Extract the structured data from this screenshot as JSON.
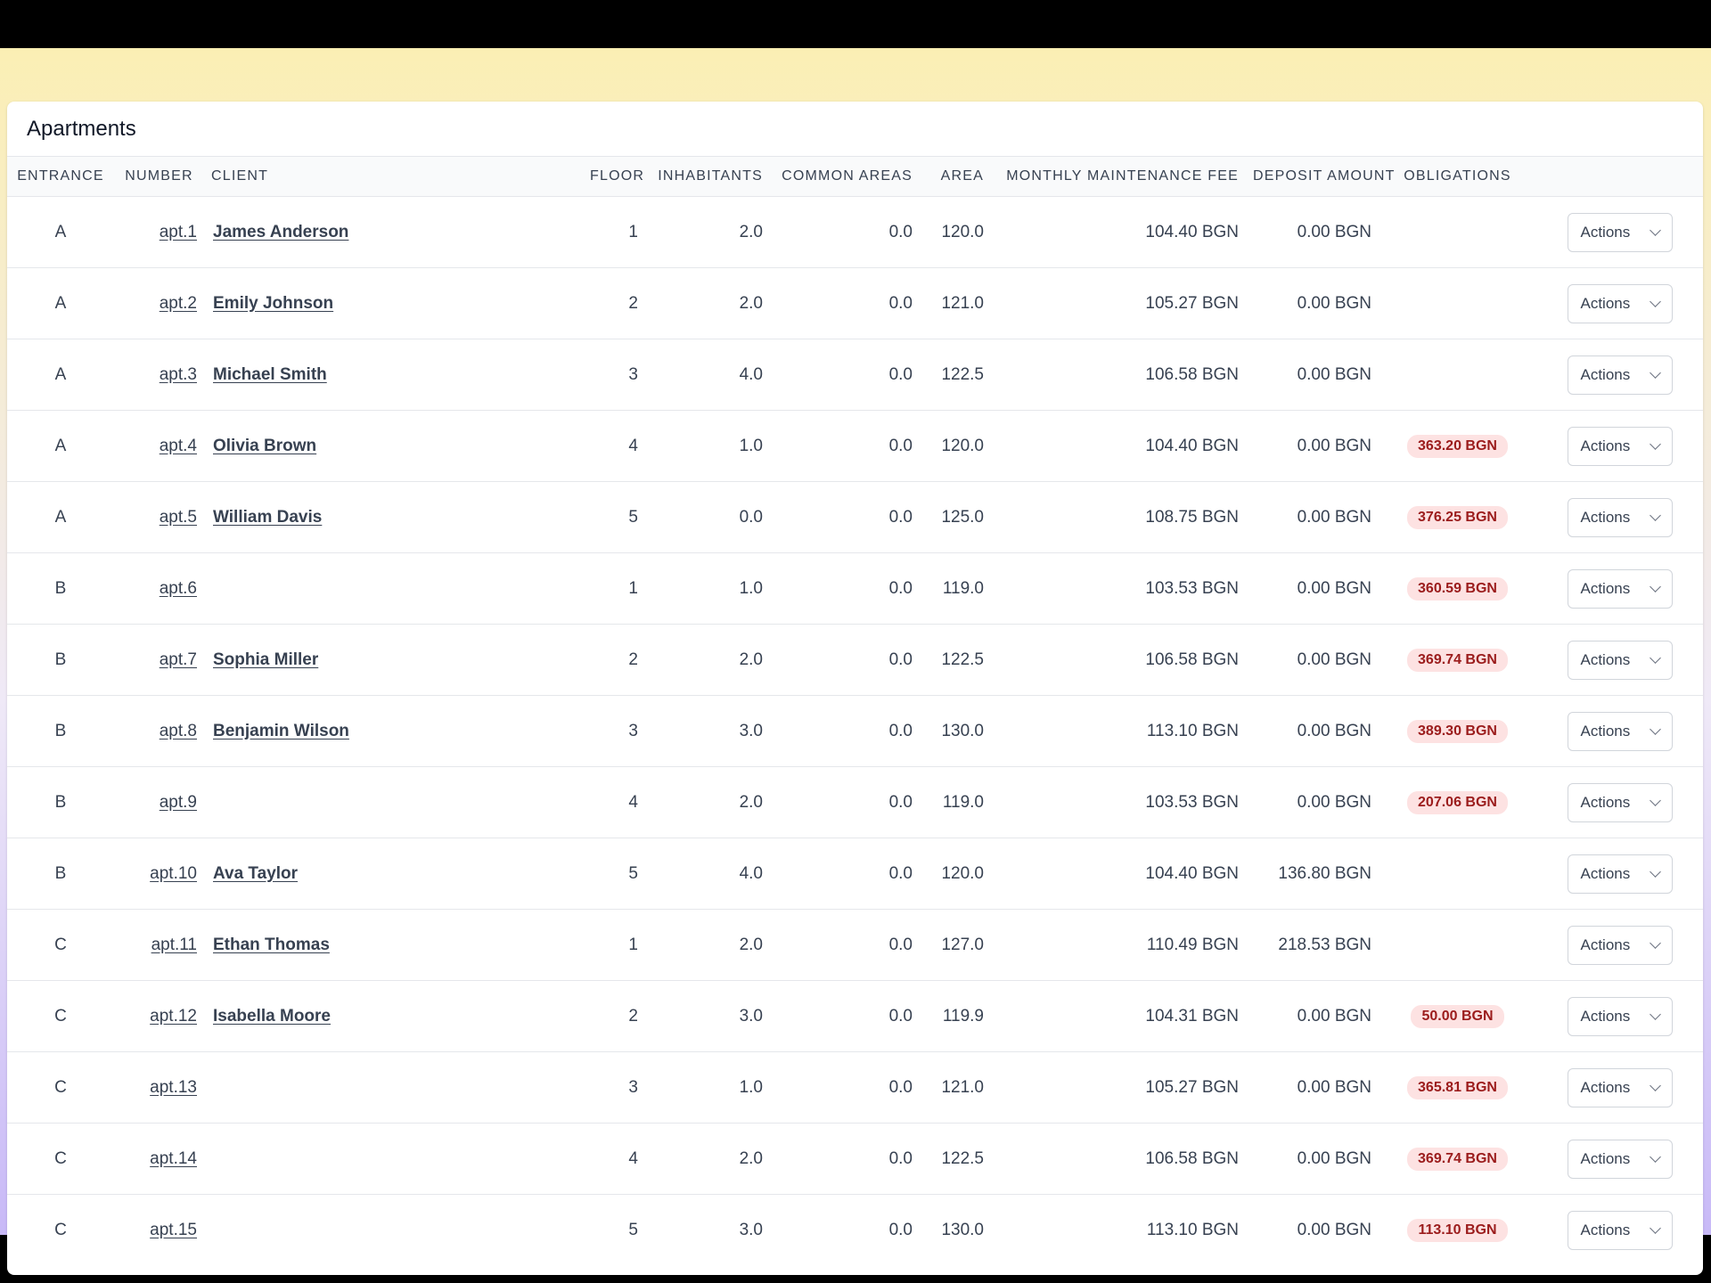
{
  "card": {
    "title": "Apartments"
  },
  "columns": {
    "entrance": "Entrance",
    "number": "Number",
    "client": "Client",
    "floor": "Floor",
    "inhabitants": "Inhabitants",
    "common_areas": "Common Areas",
    "area": "Area",
    "monthly_fee": "Monthly Maintenance Fee",
    "deposit": "Deposit Amount",
    "obligations": "Obligations"
  },
  "action_label": "Actions",
  "rows": [
    {
      "entrance": "A",
      "number": "apt.1",
      "client": "James Anderson",
      "floor": "1",
      "inhabitants": "2.0",
      "common": "0.0",
      "area": "120.0",
      "fee": "104.40 BGN",
      "deposit": "0.00 BGN",
      "obligation": ""
    },
    {
      "entrance": "A",
      "number": "apt.2",
      "client": "Emily Johnson",
      "floor": "2",
      "inhabitants": "2.0",
      "common": "0.0",
      "area": "121.0",
      "fee": "105.27 BGN",
      "deposit": "0.00 BGN",
      "obligation": ""
    },
    {
      "entrance": "A",
      "number": "apt.3",
      "client": "Michael Smith",
      "floor": "3",
      "inhabitants": "4.0",
      "common": "0.0",
      "area": "122.5",
      "fee": "106.58 BGN",
      "deposit": "0.00 BGN",
      "obligation": ""
    },
    {
      "entrance": "A",
      "number": "apt.4",
      "client": "Olivia Brown",
      "floor": "4",
      "inhabitants": "1.0",
      "common": "0.0",
      "area": "120.0",
      "fee": "104.40 BGN",
      "deposit": "0.00 BGN",
      "obligation": "363.20 BGN"
    },
    {
      "entrance": "A",
      "number": "apt.5",
      "client": "William Davis",
      "floor": "5",
      "inhabitants": "0.0",
      "common": "0.0",
      "area": "125.0",
      "fee": "108.75 BGN",
      "deposit": "0.00 BGN",
      "obligation": "376.25 BGN"
    },
    {
      "entrance": "B",
      "number": "apt.6",
      "client": "",
      "floor": "1",
      "inhabitants": "1.0",
      "common": "0.0",
      "area": "119.0",
      "fee": "103.53 BGN",
      "deposit": "0.00 BGN",
      "obligation": "360.59 BGN"
    },
    {
      "entrance": "B",
      "number": "apt.7",
      "client": "Sophia Miller",
      "floor": "2",
      "inhabitants": "2.0",
      "common": "0.0",
      "area": "122.5",
      "fee": "106.58 BGN",
      "deposit": "0.00 BGN",
      "obligation": "369.74 BGN"
    },
    {
      "entrance": "B",
      "number": "apt.8",
      "client": "Benjamin Wilson",
      "floor": "3",
      "inhabitants": "3.0",
      "common": "0.0",
      "area": "130.0",
      "fee": "113.10 BGN",
      "deposit": "0.00 BGN",
      "obligation": "389.30 BGN"
    },
    {
      "entrance": "B",
      "number": "apt.9",
      "client": "",
      "floor": "4",
      "inhabitants": "2.0",
      "common": "0.0",
      "area": "119.0",
      "fee": "103.53 BGN",
      "deposit": "0.00 BGN",
      "obligation": "207.06 BGN"
    },
    {
      "entrance": "B",
      "number": "apt.10",
      "client": "Ava Taylor",
      "floor": "5",
      "inhabitants": "4.0",
      "common": "0.0",
      "area": "120.0",
      "fee": "104.40 BGN",
      "deposit": "136.80 BGN",
      "obligation": ""
    },
    {
      "entrance": "C",
      "number": "apt.11",
      "client": "Ethan Thomas",
      "floor": "1",
      "inhabitants": "2.0",
      "common": "0.0",
      "area": "127.0",
      "fee": "110.49 BGN",
      "deposit": "218.53 BGN",
      "obligation": ""
    },
    {
      "entrance": "C",
      "number": "apt.12",
      "client": "Isabella Moore",
      "floor": "2",
      "inhabitants": "3.0",
      "common": "0.0",
      "area": "119.9",
      "fee": "104.31 BGN",
      "deposit": "0.00 BGN",
      "obligation": "50.00 BGN"
    },
    {
      "entrance": "C",
      "number": "apt.13",
      "client": "",
      "floor": "3",
      "inhabitants": "1.0",
      "common": "0.0",
      "area": "121.0",
      "fee": "105.27 BGN",
      "deposit": "0.00 BGN",
      "obligation": "365.81 BGN"
    },
    {
      "entrance": "C",
      "number": "apt.14",
      "client": "",
      "floor": "4",
      "inhabitants": "2.0",
      "common": "0.0",
      "area": "122.5",
      "fee": "106.58 BGN",
      "deposit": "0.00 BGN",
      "obligation": "369.74 BGN"
    },
    {
      "entrance": "C",
      "number": "apt.15",
      "client": "",
      "floor": "5",
      "inhabitants": "3.0",
      "common": "0.0",
      "area": "130.0",
      "fee": "113.10 BGN",
      "deposit": "0.00 BGN",
      "obligation": "113.10 BGN"
    }
  ]
}
